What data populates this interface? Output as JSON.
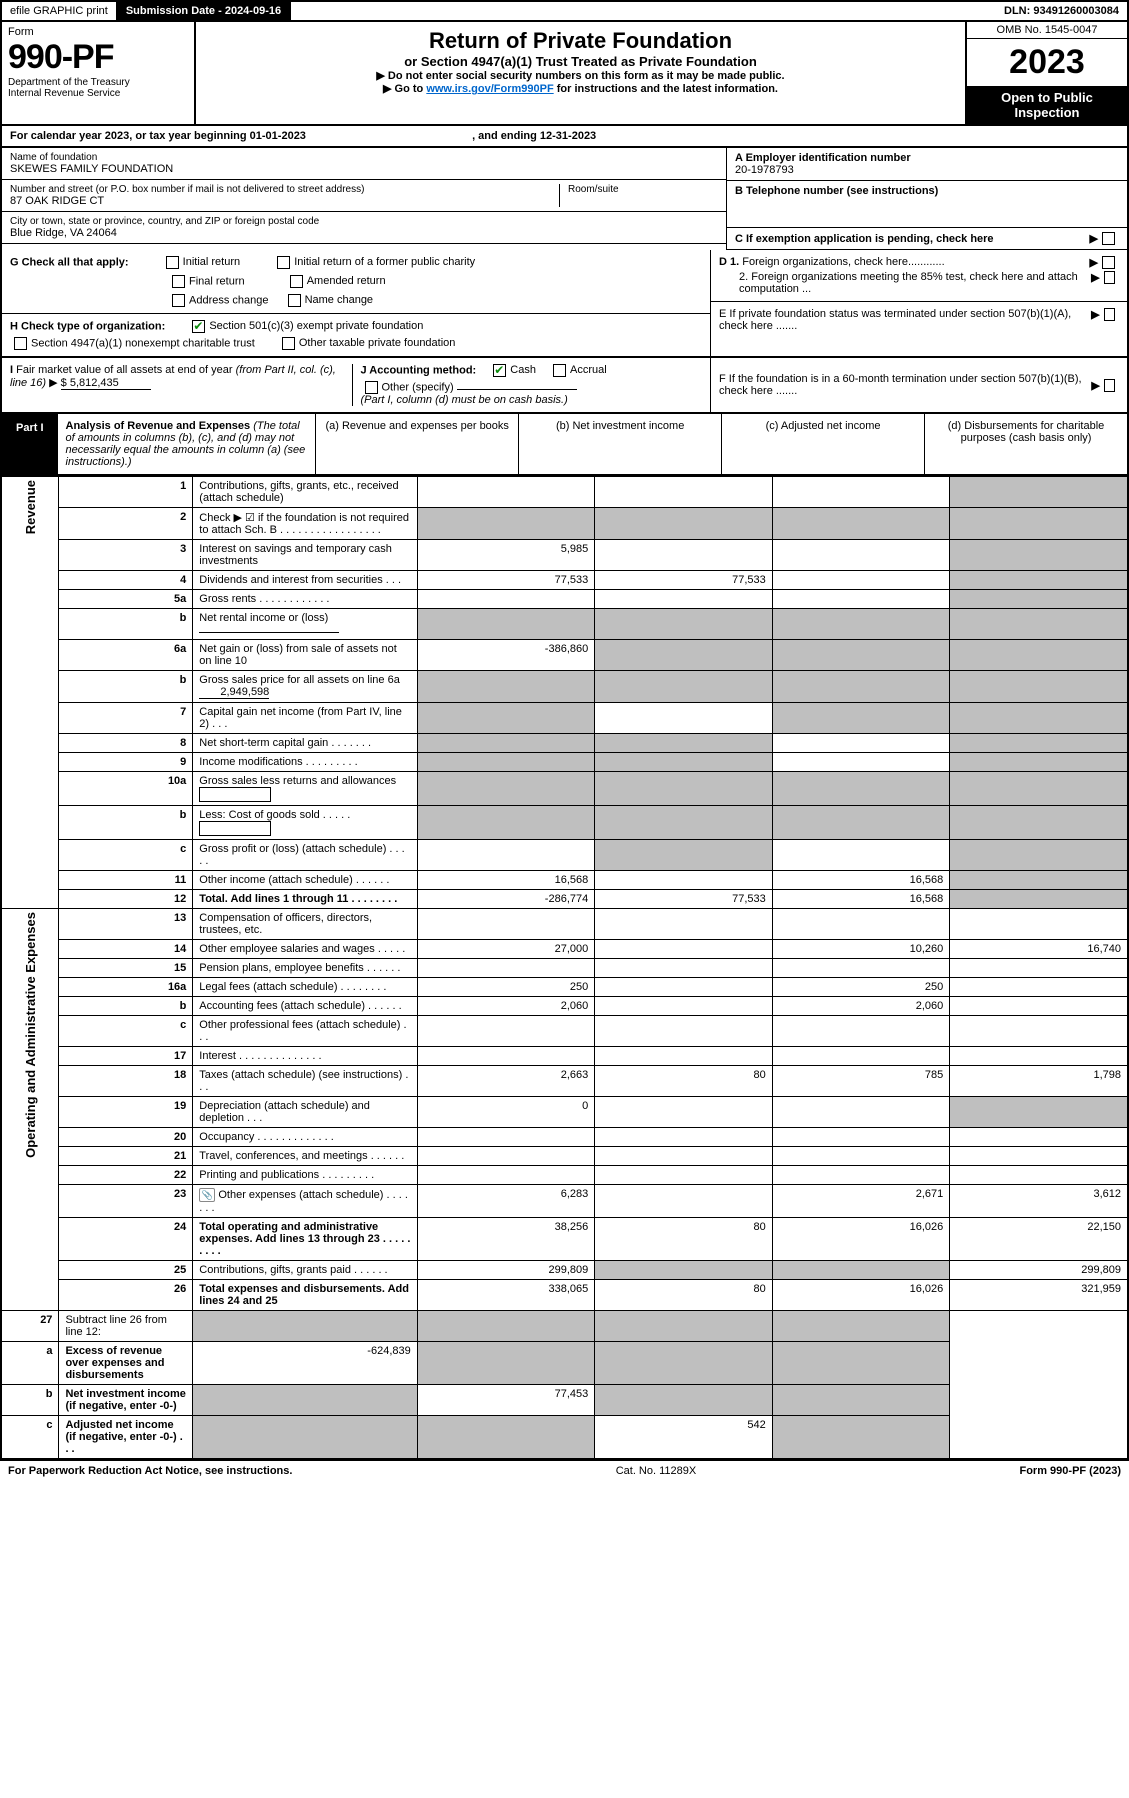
{
  "top": {
    "efile": "efile GRAPHIC print",
    "submission_label": "Submission Date - 2024-09-16",
    "dln": "DLN: 93491260003084"
  },
  "header": {
    "form_word": "Form",
    "form_code": "990-PF",
    "dept1": "Department of the Treasury",
    "dept2": "Internal Revenue Service",
    "title": "Return of Private Foundation",
    "subtitle": "or Section 4947(a)(1) Trust Treated as Private Foundation",
    "instr1": "▶ Do not enter social security numbers on this form as it may be made public.",
    "instr2_pre": "▶ Go to ",
    "instr2_link": "www.irs.gov/Form990PF",
    "instr2_post": " for instructions and the latest information.",
    "omb": "OMB No. 1545-0047",
    "year": "2023",
    "open1": "Open to Public",
    "open2": "Inspection"
  },
  "calendar": {
    "text_pre": "For calendar year 2023, or tax year beginning ",
    "begin": "01-01-2023",
    "mid": " , and ending ",
    "end": "12-31-2023"
  },
  "entity": {
    "name_lab": "Name of foundation",
    "name": "SKEWES FAMILY FOUNDATION",
    "addr_lab": "Number and street (or P.O. box number if mail is not delivered to street address)",
    "addr": "87 OAK RIDGE CT",
    "room_lab": "Room/suite",
    "city_lab": "City or town, state or province, country, and ZIP or foreign postal code",
    "city": "Blue Ridge, VA  24064",
    "ein_lab": "A Employer identification number",
    "ein": "20-1978793",
    "tel_lab": "B Telephone number (see instructions)",
    "c_lab": "C If exemption application is pending, check here",
    "d1": "D 1. Foreign organizations, check here............",
    "d2": "2. Foreign organizations meeting the 85% test, check here and attach computation ...",
    "e": "E  If private foundation status was terminated under section 507(b)(1)(A), check here .......",
    "f": "F  If the foundation is in a 60-month termination under section 507(b)(1)(B), check here .......",
    "g_lab": "G Check all that apply:",
    "g_initial": "Initial return",
    "g_initial_former": "Initial return of a former public charity",
    "g_final": "Final return",
    "g_amended": "Amended return",
    "g_addr": "Address change",
    "g_name": "Name change",
    "h_lab": "H Check type of organization:",
    "h_501": "Section 501(c)(3) exempt private foundation",
    "h_4947": "Section 4947(a)(1) nonexempt charitable trust",
    "h_other": "Other taxable private foundation",
    "i_lab": "I Fair market value of all assets at end of year (from Part II, col. (c), line 16) ▶",
    "i_val": "$  5,812,435",
    "j_lab": "J Accounting method:",
    "j_cash": "Cash",
    "j_accrual": "Accrual",
    "j_other": "Other (specify)",
    "j_note": "(Part I, column (d) must be on cash basis.)"
  },
  "part1": {
    "tab": "Part I",
    "title": "Analysis of Revenue and Expenses",
    "note": " (The total of amounts in columns (b), (c), and (d) may not necessarily equal the amounts in column (a) (see instructions).)",
    "col_a": "(a)  Revenue and expenses per books",
    "col_b": "(b)  Net investment income",
    "col_c": "(c)  Adjusted net income",
    "col_d": "(d)  Disbursements for charitable purposes (cash basis only)",
    "rev_side": "Revenue",
    "exp_side": "Operating and Administrative Expenses"
  },
  "rows": [
    {
      "n": "1",
      "t": "Contributions, gifts, grants, etc., received (attach schedule)",
      "a": "",
      "b": "",
      "c": "",
      "d": "",
      "shade_d": true
    },
    {
      "n": "2",
      "t": "Check ▶ ☑ if the foundation is not required to attach Sch. B   . . . . . . . . . . . . . . . . .",
      "a": "",
      "b": "",
      "c": "",
      "d": "",
      "shade_a": true,
      "shade_b": true,
      "shade_c": true,
      "shade_d": true,
      "bold_not": true
    },
    {
      "n": "3",
      "t": "Interest on savings and temporary cash investments",
      "a": "5,985",
      "b": "",
      "c": "",
      "d": "",
      "shade_d": true
    },
    {
      "n": "4",
      "t": "Dividends and interest from securities   .  .  .",
      "a": "77,533",
      "b": "77,533",
      "c": "",
      "d": "",
      "shade_d": true
    },
    {
      "n": "5a",
      "t": "Gross rents   .  .  .  .  .  .  .  .  .  .  .  .",
      "a": "",
      "b": "",
      "c": "",
      "d": "",
      "shade_d": true
    },
    {
      "n": "b",
      "t": "Net rental income or (loss)   ",
      "a": "",
      "b": "",
      "c": "",
      "d": "",
      "shade_a": true,
      "shade_b": true,
      "shade_c": true,
      "shade_d": true,
      "underline_after": true
    },
    {
      "n": "6a",
      "t": "Net gain or (loss) from sale of assets not on line 10",
      "a": "-386,860",
      "b": "",
      "c": "",
      "d": "",
      "shade_b": true,
      "shade_c": true,
      "shade_d": true
    },
    {
      "n": "b",
      "t": "Gross sales price for all assets on line 6a ",
      "tail": "2,949,598",
      "a": "",
      "b": "",
      "c": "",
      "d": "",
      "shade_a": true,
      "shade_b": true,
      "shade_c": true,
      "shade_d": true
    },
    {
      "n": "7",
      "t": "Capital gain net income (from Part IV, line 2)  .  .  .",
      "a": "",
      "b": "",
      "c": "",
      "d": "",
      "shade_a": true,
      "shade_c": true,
      "shade_d": true
    },
    {
      "n": "8",
      "t": "Net short-term capital gain  .  .  .  .  .  .  .",
      "a": "",
      "b": "",
      "c": "",
      "d": "",
      "shade_a": true,
      "shade_b": true,
      "shade_d": true
    },
    {
      "n": "9",
      "t": "Income modifications  .  .  .  .  .  .  .  .  .",
      "a": "",
      "b": "",
      "c": "",
      "d": "",
      "shade_a": true,
      "shade_b": true,
      "shade_d": true
    },
    {
      "n": "10a",
      "t": "Gross sales less returns and allowances",
      "a": "",
      "b": "",
      "c": "",
      "d": "",
      "shade_a": true,
      "shade_b": true,
      "shade_c": true,
      "shade_d": true,
      "box_after": true
    },
    {
      "n": "b",
      "t": "Less: Cost of goods sold   .  .  .  .  .",
      "a": "",
      "b": "",
      "c": "",
      "d": "",
      "shade_a": true,
      "shade_b": true,
      "shade_c": true,
      "shade_d": true,
      "box_after": true
    },
    {
      "n": "c",
      "t": "Gross profit or (loss) (attach schedule)   .  .  .  .  .",
      "a": "",
      "b": "",
      "c": "",
      "d": "",
      "shade_b": true,
      "shade_d": true
    },
    {
      "n": "11",
      "t": "Other income (attach schedule)  .  .  .  .  .  .",
      "a": "16,568",
      "b": "",
      "c": "16,568",
      "d": "",
      "shade_d": true
    },
    {
      "n": "12",
      "t": "Total. Add lines 1 through 11  .  .  .  .  .  .  .  .",
      "a": "-286,774",
      "b": "77,533",
      "c": "16,568",
      "d": "",
      "bold": true,
      "shade_d": true
    }
  ],
  "exp_rows": [
    {
      "n": "13",
      "t": "Compensation of officers, directors, trustees, etc.",
      "a": "",
      "b": "",
      "c": "",
      "d": ""
    },
    {
      "n": "14",
      "t": "Other employee salaries and wages   .  .  .  .  .",
      "a": "27,000",
      "b": "",
      "c": "10,260",
      "d": "16,740"
    },
    {
      "n": "15",
      "t": "Pension plans, employee benefits   .  .  .  .  .  .",
      "a": "",
      "b": "",
      "c": "",
      "d": ""
    },
    {
      "n": "16a",
      "t": "Legal fees (attach schedule)  .  .  .  .  .  .  .  .",
      "a": "250",
      "b": "",
      "c": "250",
      "d": ""
    },
    {
      "n": "b",
      "t": "Accounting fees (attach schedule)  .  .  .  .  .  .",
      "a": "2,060",
      "b": "",
      "c": "2,060",
      "d": ""
    },
    {
      "n": "c",
      "t": "Other professional fees (attach schedule)   .  .  .",
      "a": "",
      "b": "",
      "c": "",
      "d": ""
    },
    {
      "n": "17",
      "t": "Interest  .  .  .  .  .  .  .  .  .  .  .  .  .  .",
      "a": "",
      "b": "",
      "c": "",
      "d": ""
    },
    {
      "n": "18",
      "t": "Taxes (attach schedule) (see instructions)   .  .  .",
      "a": "2,663",
      "b": "80",
      "c": "785",
      "d": "1,798"
    },
    {
      "n": "19",
      "t": "Depreciation (attach schedule) and depletion   .  .  .",
      "a": "0",
      "b": "",
      "c": "",
      "d": "",
      "shade_d": true
    },
    {
      "n": "20",
      "t": "Occupancy  .  .  .  .  .  .  .  .  .  .  .  .  .",
      "a": "",
      "b": "",
      "c": "",
      "d": ""
    },
    {
      "n": "21",
      "t": "Travel, conferences, and meetings  .  .  .  .  .  .",
      "a": "",
      "b": "",
      "c": "",
      "d": ""
    },
    {
      "n": "22",
      "t": "Printing and publications  .  .  .  .  .  .  .  .  .",
      "a": "",
      "b": "",
      "c": "",
      "d": ""
    },
    {
      "n": "23",
      "t": "Other expenses (attach schedule)  .  .  .  .  .  .  .",
      "a": "6,283",
      "b": "",
      "c": "2,671",
      "d": "3,612",
      "attach": true
    },
    {
      "n": "24",
      "t": "Total operating and administrative expenses. Add lines 13 through 23   .  .  .  .  .  .  .  .  .",
      "a": "38,256",
      "b": "80",
      "c": "16,026",
      "d": "22,150",
      "bold": true
    },
    {
      "n": "25",
      "t": "Contributions, gifts, grants paid   .  .  .  .  .  .",
      "a": "299,809",
      "b": "",
      "c": "",
      "d": "299,809",
      "shade_b": true,
      "shade_c": true
    },
    {
      "n": "26",
      "t": "Total expenses and disbursements. Add lines 24 and 25",
      "a": "338,065",
      "b": "80",
      "c": "16,026",
      "d": "321,959",
      "bold": true
    }
  ],
  "tail_rows": [
    {
      "n": "27",
      "t": "Subtract line 26 from line 12:",
      "a": "",
      "b": "",
      "c": "",
      "d": "",
      "shade_a": true,
      "shade_b": true,
      "shade_c": true,
      "shade_d": true
    },
    {
      "n": "a",
      "t": "Excess of revenue over expenses and disbursements",
      "a": "-624,839",
      "b": "",
      "c": "",
      "d": "",
      "bold": true,
      "shade_b": true,
      "shade_c": true,
      "shade_d": true
    },
    {
      "n": "b",
      "t": "Net investment income (if negative, enter -0-)",
      "a": "",
      "b": "77,453",
      "c": "",
      "d": "",
      "bold": true,
      "shade_a": true,
      "shade_c": true,
      "shade_d": true
    },
    {
      "n": "c",
      "t": "Adjusted net income (if negative, enter -0-)  .  .  .",
      "a": "",
      "b": "",
      "c": "542",
      "d": "",
      "bold": true,
      "shade_a": true,
      "shade_b": true,
      "shade_d": true
    }
  ],
  "footer": {
    "left": "For Paperwork Reduction Act Notice, see instructions.",
    "mid": "Cat. No. 11289X",
    "right": "Form 990-PF (2023)"
  }
}
